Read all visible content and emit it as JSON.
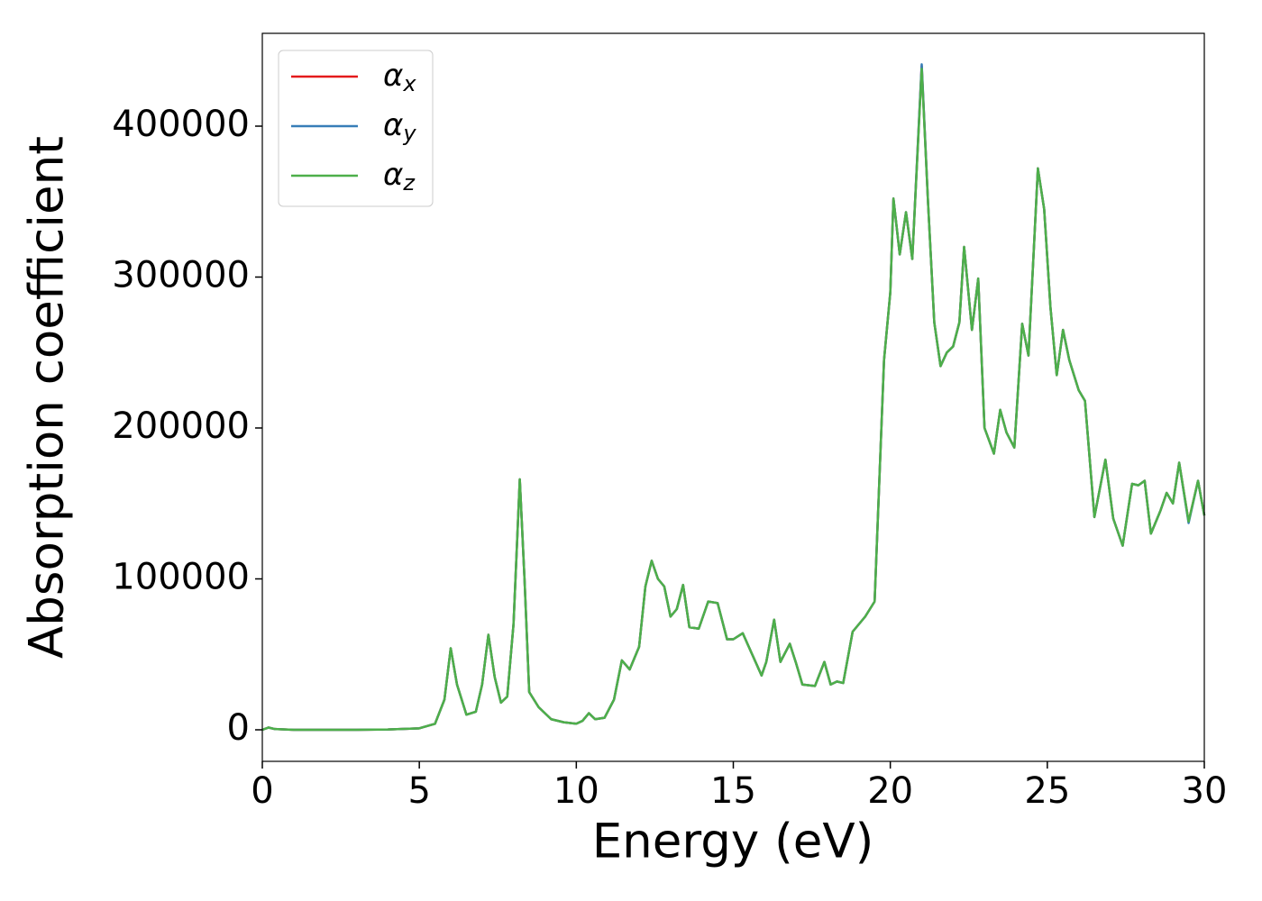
{
  "chart_data": {
    "type": "line",
    "xlabel": "Energy (eV)",
    "ylabel": "Absorption coefficient",
    "x": [
      0,
      0.2,
      0.4,
      1,
      2,
      3,
      4,
      5,
      5.5,
      5.8,
      6.0,
      6.2,
      6.5,
      6.8,
      7.0,
      7.2,
      7.4,
      7.6,
      7.8,
      8.0,
      8.2,
      8.35,
      8.5,
      8.8,
      9.2,
      9.6,
      10.0,
      10.2,
      10.4,
      10.6,
      10.9,
      11.2,
      11.45,
      11.7,
      12.0,
      12.2,
      12.4,
      12.6,
      12.8,
      13.0,
      13.2,
      13.4,
      13.6,
      13.9,
      14.2,
      14.5,
      14.8,
      15.0,
      15.3,
      15.6,
      15.9,
      16.05,
      16.3,
      16.5,
      16.8,
      17.0,
      17.2,
      17.6,
      17.9,
      18.1,
      18.3,
      18.5,
      18.8,
      19.2,
      19.5,
      19.8,
      20.0,
      20.1,
      20.3,
      20.5,
      20.7,
      21.0,
      21.2,
      21.4,
      21.6,
      21.8,
      22.0,
      22.2,
      22.35,
      22.6,
      22.8,
      23.0,
      23.3,
      23.5,
      23.7,
      23.95,
      24.2,
      24.4,
      24.7,
      24.9,
      25.1,
      25.3,
      25.5,
      25.7,
      26.0,
      26.2,
      26.5,
      26.85,
      27.1,
      27.4,
      27.7,
      27.9,
      28.1,
      28.3,
      28.6,
      28.8,
      29.0,
      29.2,
      29.5,
      29.8,
      30
    ],
    "series": [
      {
        "name": "αx",
        "color": "#e41a1c",
        "values": [
          0,
          1500,
          500,
          0,
          0,
          0,
          200,
          1000,
          4000,
          20000,
          54000,
          30000,
          10000,
          12000,
          30000,
          63000,
          35000,
          18000,
          22000,
          70000,
          166000,
          100000,
          25000,
          15000,
          7000,
          5000,
          4000,
          6000,
          11000,
          7000,
          8000,
          20000,
          46000,
          40000,
          55000,
          95000,
          112000,
          100000,
          95000,
          75000,
          80000,
          96000,
          68000,
          67000,
          85000,
          84000,
          60000,
          60000,
          64000,
          50000,
          36000,
          45000,
          73000,
          45000,
          57000,
          44000,
          30000,
          29000,
          45000,
          30000,
          32000,
          31000,
          65000,
          75000,
          85000,
          245000,
          290000,
          352000,
          315000,
          343000,
          312000,
          440000,
          350000,
          270000,
          241000,
          250000,
          254000,
          270000,
          320000,
          265000,
          299000,
          200000,
          183000,
          212000,
          197000,
          187000,
          269000,
          248000,
          372000,
          345000,
          280000,
          235000,
          265000,
          245000,
          225000,
          218000,
          141000,
          179000,
          140000,
          122000,
          163000,
          162000,
          165000,
          130000,
          145000,
          157000,
          150000,
          177000,
          138000,
          165000,
          142000
        ]
      },
      {
        "name": "αy",
        "color": "#377eb8",
        "values": [
          0,
          1500,
          500,
          0,
          0,
          0,
          200,
          1000,
          4000,
          20000,
          54000,
          30000,
          10000,
          12000,
          30000,
          63000,
          35000,
          18000,
          22000,
          70000,
          166000,
          100000,
          25000,
          15000,
          7000,
          5000,
          4000,
          6000,
          11000,
          7000,
          8000,
          20000,
          46000,
          40000,
          55000,
          95000,
          112000,
          100000,
          95000,
          75000,
          80000,
          96000,
          68000,
          67000,
          85000,
          84000,
          60000,
          60000,
          64000,
          50000,
          36000,
          45000,
          73000,
          45000,
          57000,
          44000,
          30000,
          29000,
          45000,
          30000,
          32000,
          31000,
          65000,
          75000,
          85000,
          245000,
          290000,
          352000,
          315000,
          343000,
          312000,
          441000,
          350000,
          270000,
          241000,
          250000,
          254000,
          270000,
          320000,
          265000,
          299000,
          200000,
          183000,
          212000,
          197000,
          187000,
          269000,
          248000,
          372000,
          345000,
          280000,
          235000,
          265000,
          245000,
          225000,
          218000,
          141000,
          179000,
          140000,
          122000,
          163000,
          162000,
          165000,
          130000,
          145000,
          157000,
          150000,
          177000,
          137000,
          165000,
          142000
        ]
      },
      {
        "name": "αz",
        "color": "#4daf4a",
        "values": [
          0,
          1500,
          500,
          0,
          0,
          0,
          200,
          1000,
          4000,
          20000,
          54000,
          30000,
          10000,
          12000,
          30000,
          63000,
          35000,
          18000,
          22000,
          70000,
          166000,
          100000,
          25000,
          15000,
          7000,
          5000,
          4000,
          6000,
          11000,
          7000,
          8000,
          20000,
          46000,
          40000,
          55000,
          95000,
          112000,
          100000,
          95000,
          75000,
          80000,
          96000,
          68000,
          67000,
          85000,
          84000,
          60000,
          60000,
          64000,
          50000,
          36000,
          45000,
          73000,
          45000,
          57000,
          44000,
          30000,
          29000,
          45000,
          30000,
          32000,
          31000,
          65000,
          75000,
          85000,
          245000,
          290000,
          352000,
          315000,
          343000,
          312000,
          438000,
          350000,
          270000,
          241000,
          250000,
          254000,
          270000,
          320000,
          265000,
          299000,
          200000,
          183000,
          212000,
          197000,
          187000,
          269000,
          248000,
          372000,
          345000,
          280000,
          235000,
          265000,
          245000,
          225000,
          218000,
          141000,
          179000,
          140000,
          122000,
          163000,
          162000,
          165000,
          130000,
          145000,
          157000,
          150000,
          177000,
          138000,
          165000,
          142000
        ]
      }
    ],
    "xlim": [
      0,
      30
    ],
    "xticks": [
      0,
      5,
      10,
      15,
      20,
      25,
      30
    ],
    "ylim": [
      -20900,
      461500
    ],
    "yticks": [
      0,
      100000,
      200000,
      300000,
      400000
    ],
    "grid": false,
    "legend": "upper left"
  }
}
